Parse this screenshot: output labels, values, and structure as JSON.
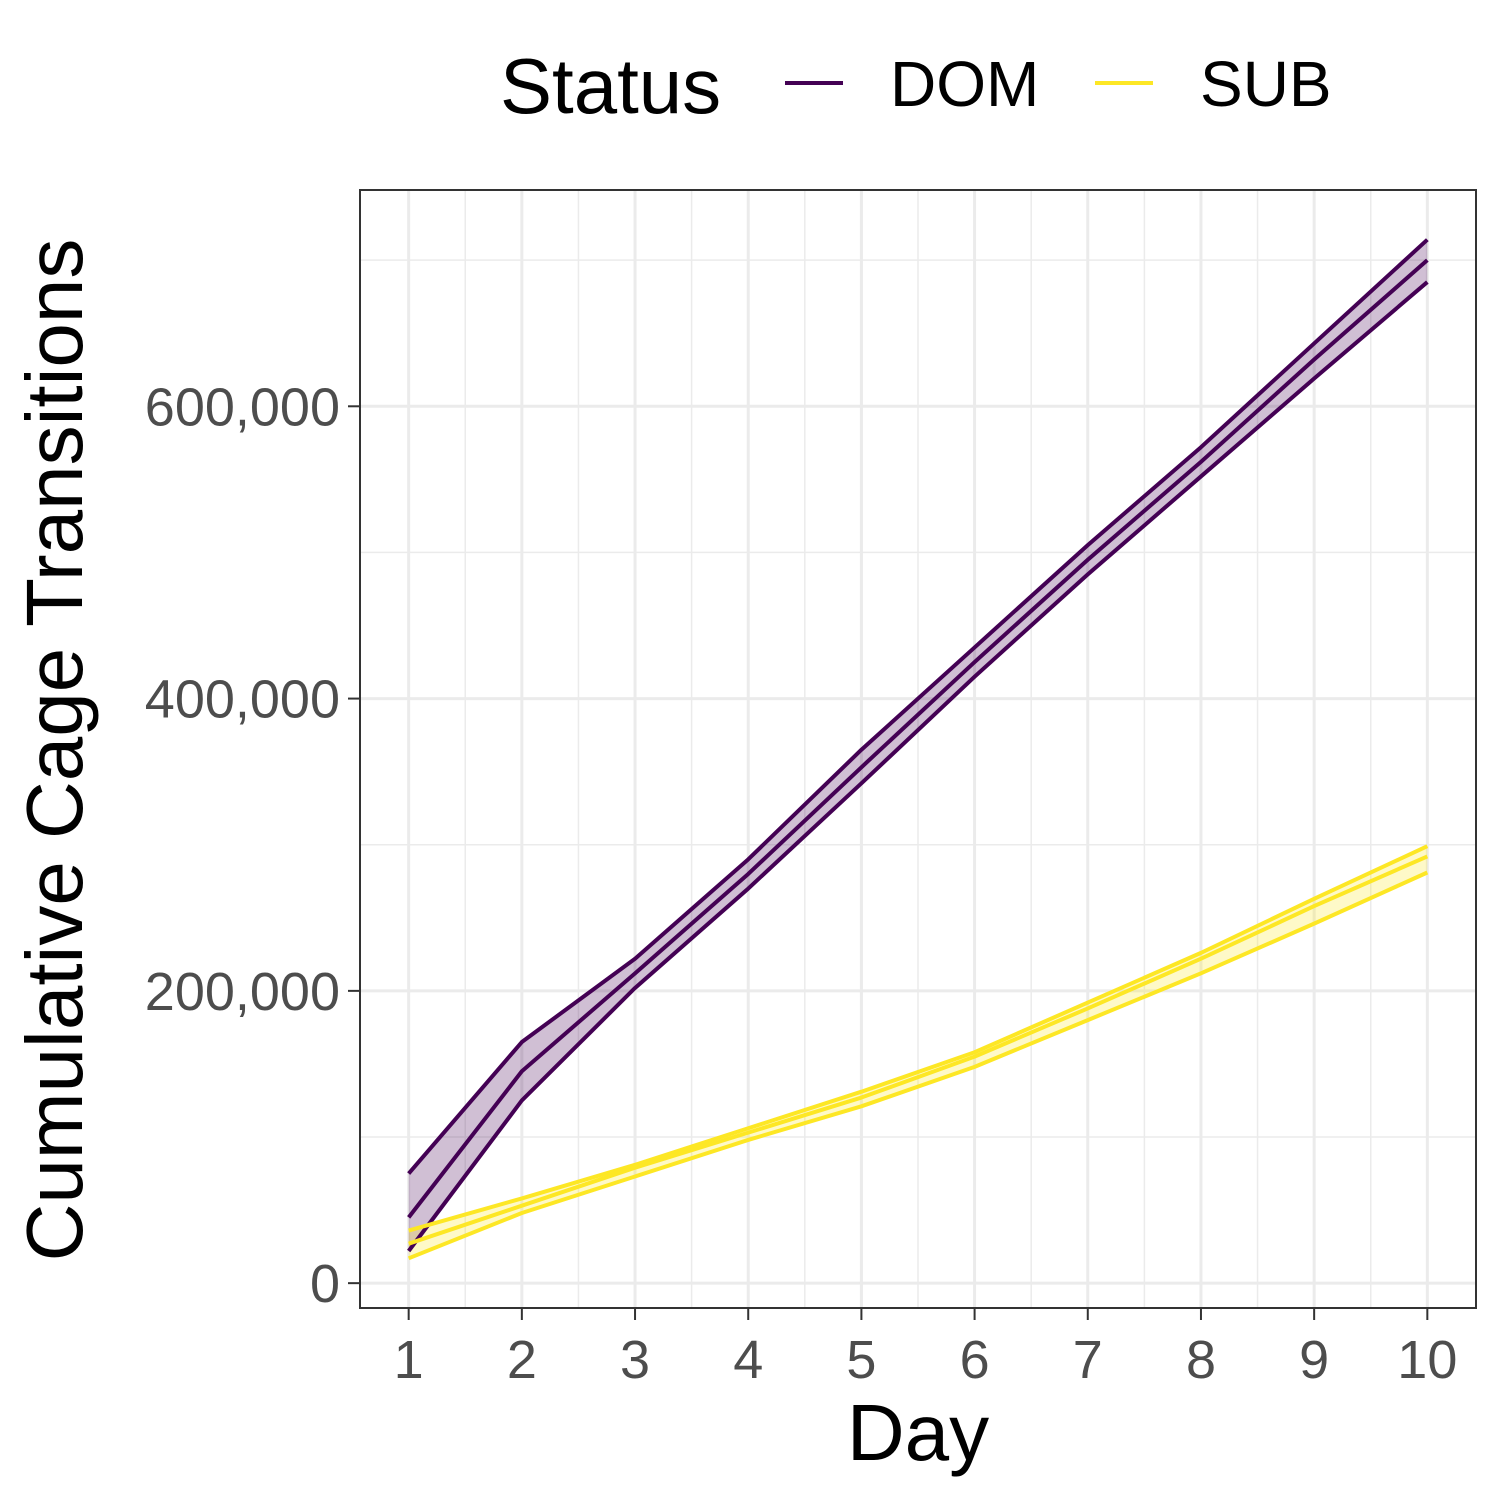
{
  "chart_data": {
    "type": "line",
    "title": "",
    "xlabel": "Day",
    "ylabel": "Cumulative Cage Transitions",
    "legend": {
      "title": "Status",
      "position": "top"
    },
    "x": [
      1,
      2,
      3,
      4,
      5,
      6,
      7,
      8,
      9,
      10
    ],
    "x_ticks": [
      "1",
      "2",
      "3",
      "4",
      "5",
      "6",
      "7",
      "8",
      "9",
      "10"
    ],
    "y_ticks": [
      {
        "value": 0,
        "label": "0"
      },
      {
        "value": 200000,
        "label": "200,000"
      },
      {
        "value": 400000,
        "label": "400,000"
      },
      {
        "value": 600000,
        "label": "600,000"
      }
    ],
    "xlim": [
      0.57,
      10.43
    ],
    "ylim": [
      -17000,
      748000
    ],
    "grid": true,
    "series": [
      {
        "name": "DOM",
        "color": "#440154",
        "fill": "#440154",
        "fill_opacity": 0.25,
        "mean": [
          45000,
          145000,
          212000,
          280000,
          353000,
          425000,
          495000,
          562000,
          632000,
          700000
        ],
        "upper": [
          75000,
          165000,
          222000,
          290000,
          365000,
          435000,
          505000,
          572000,
          643000,
          714000
        ],
        "lower": [
          22000,
          125000,
          202000,
          270000,
          342000,
          415000,
          485000,
          552000,
          619000,
          685000
        ]
      },
      {
        "name": "SUB",
        "color": "#FDE725",
        "fill": "#FDE725",
        "fill_opacity": 0.25,
        "mean": [
          27000,
          53000,
          79000,
          103000,
          127000,
          155000,
          188000,
          222000,
          258000,
          292000
        ],
        "upper": [
          36000,
          58000,
          81000,
          106000,
          131000,
          158000,
          192000,
          226000,
          263000,
          299000
        ],
        "lower": [
          17000,
          48000,
          73000,
          98000,
          121000,
          148000,
          180000,
          212000,
          246000,
          281000
        ]
      }
    ]
  }
}
